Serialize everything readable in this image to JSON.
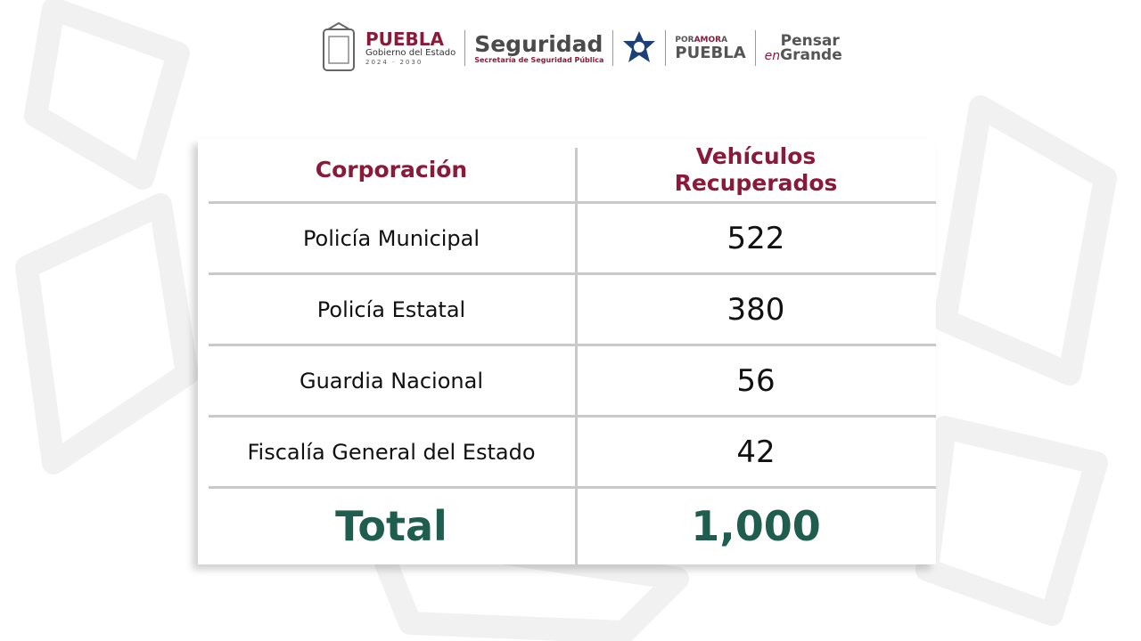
{
  "header": {
    "puebla": {
      "title": "PUEBLA",
      "subtitle": "Gobierno del Estado",
      "years": "2024 · 2030"
    },
    "seguridad": {
      "title": "Seguridad",
      "subtitle": "Secretaría de Seguridad Pública"
    },
    "por_amor": {
      "line1a": "POR",
      "line1b": "AMOR",
      "line1c": "A",
      "line2": "PUEBLA"
    },
    "pensar": {
      "line1": "Pensar",
      "en": "en",
      "line2": "Grande"
    }
  },
  "table": {
    "columns": [
      "Corporación",
      "Vehículos Recuperados"
    ],
    "rows": [
      [
        "Policía Municipal",
        522
      ],
      [
        "Policía Estatal",
        380
      ],
      [
        "Guardia Nacional",
        56
      ],
      [
        "Fiscalía General del Estado",
        42
      ]
    ],
    "total": [
      "Total",
      "1,000"
    ]
  }
}
